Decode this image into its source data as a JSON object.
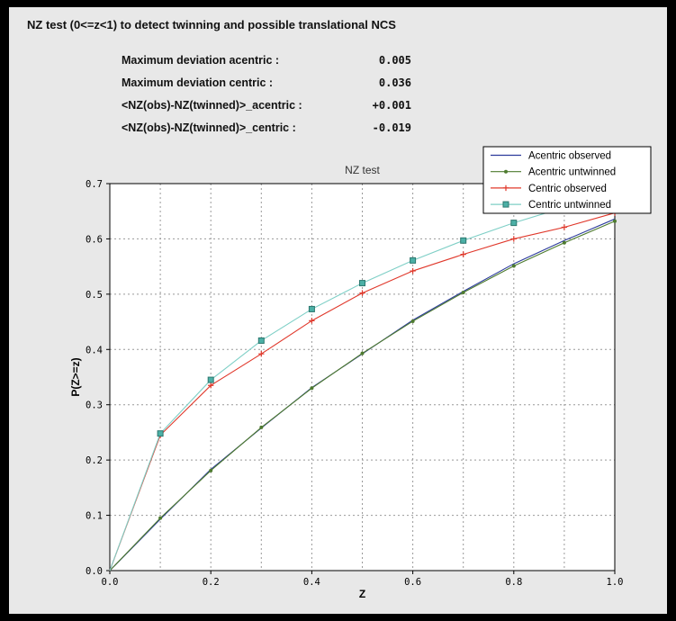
{
  "header": {
    "title": "NZ test (0<=z<1) to detect twinning and possible translational NCS"
  },
  "stats": [
    {
      "label": "Maximum deviation acentric :",
      "value": "0.005"
    },
    {
      "label": "Maximum deviation centric :",
      "value": "0.036"
    },
    {
      "label": "<NZ(obs)-NZ(twinned)>_acentric :",
      "value": "+0.001"
    },
    {
      "label": "<NZ(obs)-NZ(twinned)>_centric :",
      "value": "-0.019"
    }
  ],
  "colors": {
    "panel_bg": "#e8e8e8",
    "plot_bg": "#ffffff",
    "grid": "#999999",
    "acentric_observed": "#2b3a9c",
    "acentric_untwinned": "#4e7b2f",
    "centric_observed": "#e0382b",
    "centric_untwinned_line": "#7ecfc6",
    "centric_untwinned_marker": "#4cb0a6"
  },
  "chart_data": {
    "type": "line",
    "title": "NZ test",
    "xlabel": "Z",
    "ylabel": "P(Z>=z)",
    "xlim": [
      0.0,
      1.0
    ],
    "ylim": [
      0.0,
      0.7
    ],
    "xticks": [
      0.0,
      0.2,
      0.4,
      0.6,
      0.8,
      1.0
    ],
    "yticks": [
      0.0,
      0.1,
      0.2,
      0.3,
      0.4,
      0.5,
      0.6,
      0.7
    ],
    "xgrid": [
      0.1,
      0.2,
      0.3,
      0.4,
      0.5,
      0.6,
      0.7,
      0.8,
      0.9
    ],
    "ygrid": [
      0.1,
      0.2,
      0.3,
      0.4,
      0.5,
      0.6
    ],
    "grid": true,
    "legend_position": "top-right",
    "x": [
      0.0,
      0.1,
      0.2,
      0.3,
      0.4,
      0.5,
      0.6,
      0.7,
      0.8,
      0.9,
      1.0
    ],
    "series": [
      {
        "name": "Acentric observed",
        "color": "#2b3a9c",
        "marker": "none",
        "values": [
          0.0,
          0.093,
          0.183,
          0.258,
          0.331,
          0.392,
          0.453,
          0.505,
          0.555,
          0.597,
          0.636
        ]
      },
      {
        "name": "Acentric untwinned",
        "color": "#4e7b2f",
        "marker": "dot",
        "values": [
          0.0,
          0.095,
          0.181,
          0.259,
          0.33,
          0.393,
          0.451,
          0.503,
          0.551,
          0.593,
          0.632
        ]
      },
      {
        "name": "Centric observed",
        "color": "#e0382b",
        "marker": "plus",
        "values": [
          0.0,
          0.245,
          0.335,
          0.392,
          0.452,
          0.502,
          0.542,
          0.572,
          0.6,
          0.621,
          0.647
        ]
      },
      {
        "name": "Centric untwinned",
        "color": "#7ecfc6",
        "marker": "square",
        "marker_fill": "#4cb0a6",
        "marker_edge": "#2c776f",
        "values": [
          0.0,
          0.248,
          0.345,
          0.416,
          0.473,
          0.52,
          0.561,
          0.597,
          0.629,
          0.657,
          0.683
        ]
      }
    ]
  }
}
